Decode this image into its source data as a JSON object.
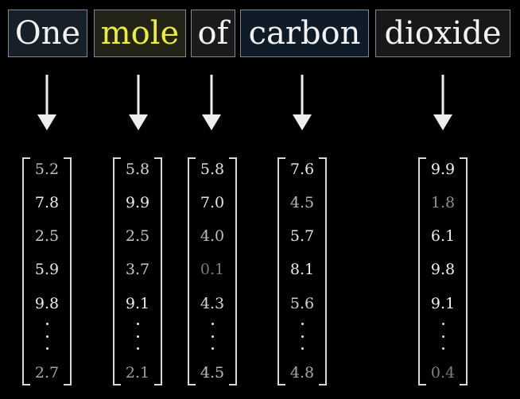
{
  "tokens": [
    {
      "word": "One",
      "text_color": "#f2f2f2",
      "box_color": "#172029"
    },
    {
      "word": "mole",
      "text_color": "#ecec3c",
      "box_color": "#232318"
    },
    {
      "word": "of",
      "text_color": "#f2f2f2",
      "box_color": "#1b1b1b"
    },
    {
      "word": "carbon",
      "text_color": "#f2f2f2",
      "box_color": "#0f1c27"
    },
    {
      "word": "dioxide",
      "text_color": "#f2f2f2",
      "box_color": "#181818"
    }
  ],
  "vectors": [
    {
      "values": [
        "5.2",
        "7.8",
        "2.5",
        "5.9",
        "9.8"
      ],
      "last": "2.7",
      "shades": [
        "#bdbdbd",
        "#ececec",
        "#c7c7c7",
        "#e5e5e5",
        "#ececec"
      ],
      "last_shade": "#a9a9a9",
      "dots_shade": "#eaeaea"
    },
    {
      "values": [
        "5.8",
        "9.9",
        "2.5",
        "3.7",
        "9.1"
      ],
      "last": "2.1",
      "shades": [
        "#d3d3d3",
        "#ececec",
        "#c5c5c5",
        "#c9c9c9",
        "#ececec"
      ],
      "last_shade": "#9c9c9c",
      "dots_shade": "#ececec"
    },
    {
      "values": [
        "5.8",
        "7.0",
        "4.0",
        "0.1",
        "4.3"
      ],
      "last": "4.5",
      "shades": [
        "#e0e0e0",
        "#e7e7e7",
        "#bdbdbd",
        "#7d7d7d",
        "#d9d9d9"
      ],
      "last_shade": "#bcbcbc",
      "dots_shade": "#e6e6e6"
    },
    {
      "values": [
        "7.6",
        "4.5",
        "5.7",
        "8.1",
        "5.6"
      ],
      "last": "4.8",
      "shades": [
        "#e5e5e5",
        "#b9b9b9",
        "#e5e5e5",
        "#ececec",
        "#cfcfcf"
      ],
      "last_shade": "#a6a6a6",
      "dots_shade": "#e6e6e6"
    },
    {
      "values": [
        "9.9",
        "1.8",
        "6.1",
        "9.8",
        "9.1"
      ],
      "last": "0.4",
      "shades": [
        "#f2f2f2",
        "#8e8e8e",
        "#ececec",
        "#f2f2f2",
        "#f2f2f2"
      ],
      "last_shade": "#7f7f7f",
      "dots_shade": "#d8d8d8"
    }
  ]
}
